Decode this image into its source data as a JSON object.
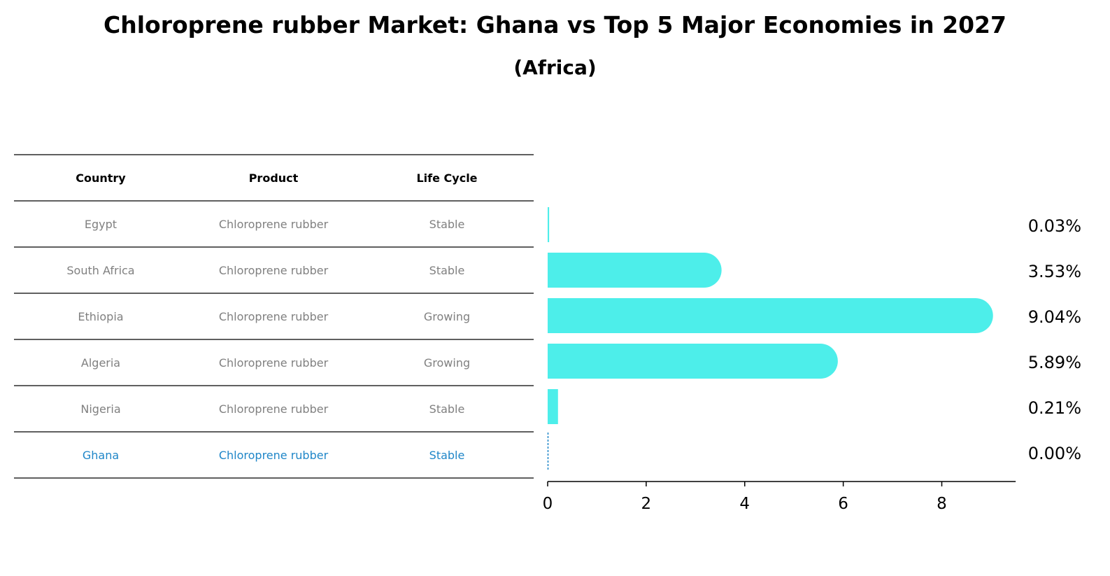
{
  "title": "Chloroprene rubber Market: Ghana vs Top 5 Major Economies in 2027",
  "subtitle": "(Africa)",
  "table": {
    "headers": [
      "Country",
      "Product",
      "Life Cycle"
    ],
    "rows": [
      {
        "country": "Egypt",
        "product": "Chloroprene rubber",
        "life_cycle": "Stable",
        "highlight": false
      },
      {
        "country": "South Africa",
        "product": "Chloroprene rubber",
        "life_cycle": "Stable",
        "highlight": false
      },
      {
        "country": "Ethiopia",
        "product": "Chloroprene rubber",
        "life_cycle": "Growing",
        "highlight": false
      },
      {
        "country": "Algeria",
        "product": "Chloroprene rubber",
        "life_cycle": "Growing",
        "highlight": false
      },
      {
        "country": "Nigeria",
        "product": "Chloroprene rubber",
        "life_cycle": "Stable",
        "highlight": false
      },
      {
        "country": "Ghana",
        "product": "Chloroprene rubber",
        "life_cycle": "Stable",
        "highlight": true
      }
    ]
  },
  "chart_data": {
    "type": "bar",
    "orientation": "horizontal",
    "categories": [
      "Egypt",
      "South Africa",
      "Ethiopia",
      "Algeria",
      "Nigeria",
      "Ghana"
    ],
    "values": [
      0.03,
      3.53,
      9.04,
      5.89,
      0.21,
      0.0
    ],
    "value_labels": [
      "0.03%",
      "3.53%",
      "9.04%",
      "5.89%",
      "0.21%",
      "0.00%"
    ],
    "xlim": [
      0,
      9.5
    ],
    "xticks": [
      0,
      2,
      4,
      6,
      8
    ],
    "grid": false,
    "legend": "none"
  },
  "colors": {
    "bar": "#4DEEEA",
    "highlight": "#1F86C8",
    "muted_text": "#808080",
    "header_text": "#000000",
    "rule": "#000000"
  }
}
